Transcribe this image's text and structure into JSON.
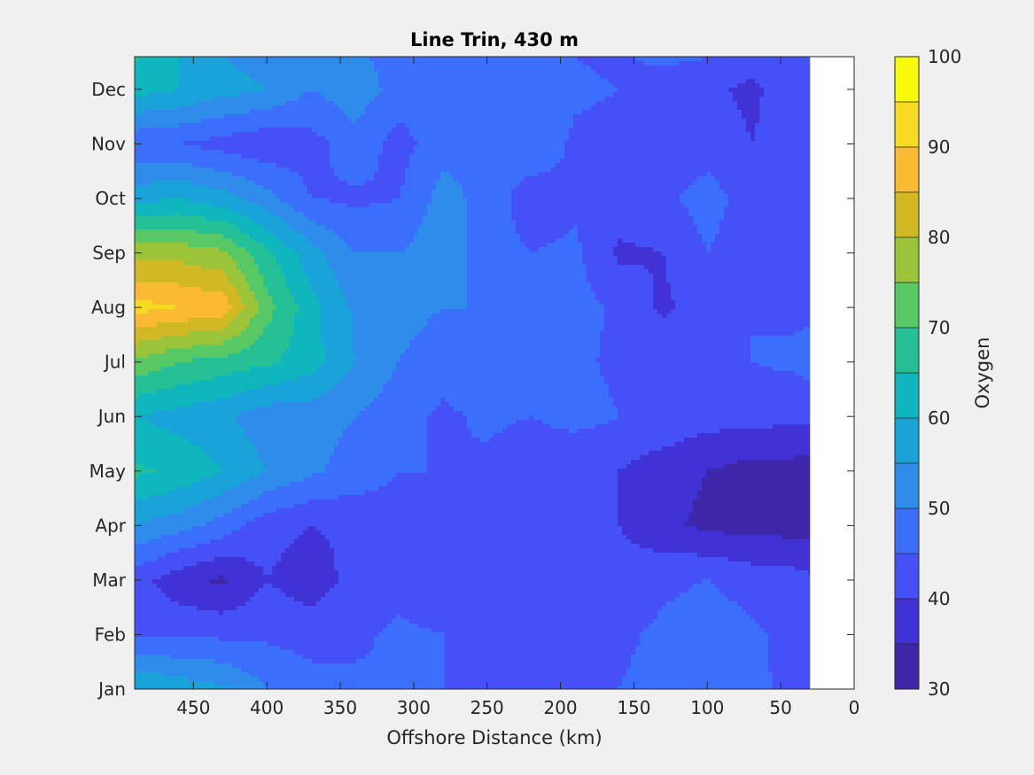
{
  "figure": {
    "background": "#f0f0f0"
  },
  "chart_data": {
    "type": "heatmap",
    "subtype": "filled-contour",
    "title": "Line Trin, 430 m",
    "xlabel": "Offshore Distance (km)",
    "ylabel": "",
    "xlim": [
      490,
      0
    ],
    "x_reversed": true,
    "x_ticks": [
      450,
      400,
      350,
      300,
      250,
      200,
      150,
      100,
      50,
      0
    ],
    "y_ticks": [
      "Jan",
      "Feb",
      "Mar",
      "Apr",
      "May",
      "Jun",
      "Jul",
      "Aug",
      "Sep",
      "Oct",
      "Nov",
      "Dec"
    ],
    "y_tick_month_index": [
      1,
      2,
      3,
      4,
      5,
      6,
      7,
      8,
      9,
      10,
      11,
      12
    ],
    "ylim_month_index": [
      1,
      12.6
    ],
    "data_x_range_km": [
      490,
      30
    ],
    "no_data_region_km": [
      30,
      0
    ],
    "colorbar": {
      "label": "Oxygen",
      "range": [
        30,
        100
      ],
      "ticks": [
        30,
        40,
        50,
        60,
        70,
        80,
        90,
        100
      ],
      "levels": [
        30,
        35,
        40,
        45,
        50,
        55,
        60,
        65,
        70,
        75,
        80,
        85,
        90,
        95,
        100
      ],
      "colors": [
        "#3e26a8",
        "#4132d6",
        "#4650f7",
        "#3b6ffb",
        "#2f8ceb",
        "#1aa3d8",
        "#10b6be",
        "#26c096",
        "#58c864",
        "#9bc43a",
        "#d1b825",
        "#fbba33",
        "#f6da23",
        "#f9fb0e"
      ]
    },
    "grid": false,
    "field_samples_month_by_km": {
      "x_km": [
        490,
        460,
        430,
        400,
        370,
        340,
        310,
        280,
        250,
        220,
        190,
        160,
        130,
        100,
        70,
        40,
        30
      ],
      "rows": [
        {
          "month": 1,
          "values": [
            60,
            58,
            56,
            50,
            47,
            46,
            45,
            45,
            44,
            43,
            42,
            45,
            47,
            49,
            46,
            44,
            44
          ]
        },
        {
          "month": 2,
          "values": [
            45,
            44,
            44,
            44,
            43,
            44,
            46,
            45,
            43,
            41,
            40,
            44,
            46,
            48,
            46,
            43,
            42
          ]
        },
        {
          "month": 3,
          "values": [
            42,
            37,
            34,
            40,
            37,
            42,
            43,
            41,
            43,
            42,
            41,
            42,
            44,
            45,
            43,
            42,
            41
          ]
        },
        {
          "month": 4,
          "values": [
            55,
            52,
            48,
            42,
            40,
            41,
            43,
            44,
            42,
            42,
            41,
            40,
            36,
            34,
            33,
            33,
            33
          ]
        },
        {
          "month": 5,
          "values": [
            66,
            64,
            60,
            55,
            51,
            48,
            45,
            45,
            44,
            41,
            40,
            40,
            37,
            35,
            33,
            33,
            33
          ]
        },
        {
          "month": 6,
          "values": [
            60,
            58,
            56,
            52,
            52,
            50,
            47,
            44,
            46,
            45,
            47,
            45,
            44,
            42,
            42,
            41,
            41
          ]
        },
        {
          "month": 7,
          "values": [
            74,
            70,
            68,
            66,
            62,
            55,
            50,
            47,
            50,
            46,
            46,
            44,
            44,
            43,
            45,
            46,
            47
          ]
        },
        {
          "month": 8,
          "values": [
            92,
            90,
            88,
            72,
            62,
            54,
            52,
            50,
            50,
            47,
            47,
            44,
            39,
            43,
            45,
            44,
            44
          ]
        },
        {
          "month": 9,
          "values": [
            78,
            78,
            76,
            66,
            57,
            50,
            50,
            53,
            47,
            45,
            46,
            39,
            40,
            45,
            42,
            43,
            42
          ]
        },
        {
          "month": 10,
          "values": [
            58,
            60,
            57,
            52,
            45,
            44,
            45,
            52,
            48,
            42,
            44,
            43,
            44,
            47,
            43,
            43,
            43
          ]
        },
        {
          "month": 11,
          "values": [
            46,
            45,
            43,
            41,
            43,
            48,
            43,
            48,
            49,
            49,
            44,
            43,
            40,
            43,
            40,
            42,
            41
          ]
        },
        {
          "month": 12,
          "values": [
            62,
            60,
            57,
            55,
            50,
            53,
            48,
            47,
            47,
            49,
            46,
            45,
            40,
            41,
            39,
            43,
            45
          ]
        },
        {
          "month": 12.6,
          "values": [
            66,
            60,
            55,
            53,
            50,
            51,
            48,
            46,
            45,
            45,
            45,
            44,
            47,
            45,
            42,
            43,
            44
          ]
        }
      ]
    }
  }
}
